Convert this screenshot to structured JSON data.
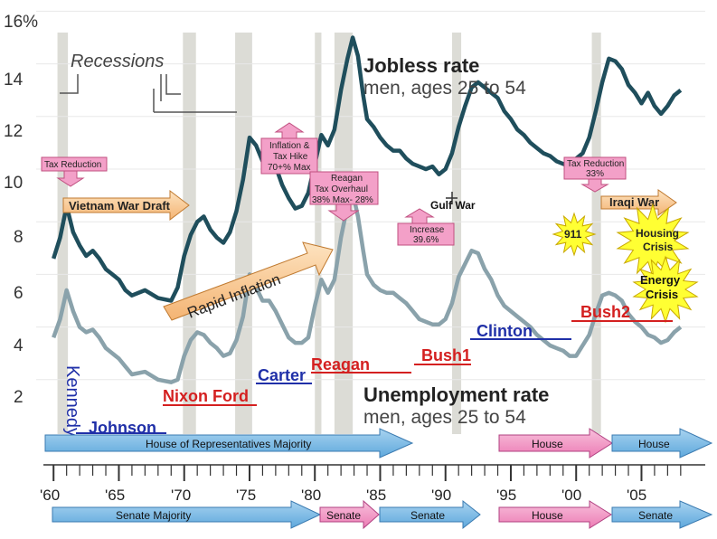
{
  "chart_data": {
    "type": "line",
    "y_axis": {
      "unit_label": "16%",
      "ticks": [
        "14",
        "12",
        "10",
        "8",
        "6",
        "4",
        "2"
      ],
      "range": [
        0,
        16
      ]
    },
    "x_axis": {
      "tick_labels": [
        "'60",
        "'65",
        "'70",
        "'75",
        "'80",
        "'85",
        "'90",
        "'95",
        "'00",
        "'05"
      ],
      "range": [
        1959.5,
        2008.5
      ]
    },
    "recessions_label": "Recessions",
    "recessions": [
      [
        1960.3,
        1961.1
      ],
      [
        1969.9,
        1970.9
      ],
      [
        1973.9,
        1975.2
      ],
      [
        1980.0,
        1980.5
      ],
      [
        1981.5,
        1982.9
      ],
      [
        1990.5,
        1991.2
      ],
      [
        2001.2,
        2001.9
      ]
    ],
    "series": [
      {
        "name": "jobless",
        "title": "Jobless rate",
        "subtitle": "men, ages 25 to 54",
        "color": "#1f4e5c",
        "points": [
          [
            1960,
            6.6
          ],
          [
            1960.5,
            7.4
          ],
          [
            1961,
            8.6
          ],
          [
            1961.5,
            7.6
          ],
          [
            1962,
            7.1
          ],
          [
            1962.5,
            6.7
          ],
          [
            1963,
            6.9
          ],
          [
            1963.5,
            6.6
          ],
          [
            1964,
            6.2
          ],
          [
            1964.5,
            6.0
          ],
          [
            1965,
            5.8
          ],
          [
            1965.5,
            5.4
          ],
          [
            1966,
            5.2
          ],
          [
            1967,
            5.4
          ],
          [
            1968,
            5.1
          ],
          [
            1969,
            5.0
          ],
          [
            1969.5,
            5.5
          ],
          [
            1970,
            6.7
          ],
          [
            1970.5,
            7.5
          ],
          [
            1971,
            8.0
          ],
          [
            1971.5,
            8.2
          ],
          [
            1972,
            7.7
          ],
          [
            1972.5,
            7.4
          ],
          [
            1973,
            7.2
          ],
          [
            1973.5,
            7.6
          ],
          [
            1974,
            8.4
          ],
          [
            1974.5,
            9.6
          ],
          [
            1975,
            11.2
          ],
          [
            1975.5,
            10.9
          ],
          [
            1976,
            10.3
          ],
          [
            1976.5,
            10.8
          ],
          [
            1977,
            10.1
          ],
          [
            1977.5,
            9.4
          ],
          [
            1978,
            8.9
          ],
          [
            1978.5,
            8.5
          ],
          [
            1979,
            8.6
          ],
          [
            1979.5,
            9.1
          ],
          [
            1980,
            10.2
          ],
          [
            1980.5,
            11.3
          ],
          [
            1981,
            10.9
          ],
          [
            1981.5,
            11.5
          ],
          [
            1982,
            13.0
          ],
          [
            1982.5,
            14.2
          ],
          [
            1982.9,
            15.0
          ],
          [
            1983.3,
            14.3
          ],
          [
            1983.7,
            12.8
          ],
          [
            1984,
            11.9
          ],
          [
            1984.5,
            11.6
          ],
          [
            1985,
            11.2
          ],
          [
            1985.5,
            10.9
          ],
          [
            1986,
            10.7
          ],
          [
            1986.5,
            10.7
          ],
          [
            1987,
            10.4
          ],
          [
            1987.5,
            10.2
          ],
          [
            1988,
            10.1
          ],
          [
            1988.5,
            10.0
          ],
          [
            1989,
            10.1
          ],
          [
            1989.5,
            9.8
          ],
          [
            1990,
            10.0
          ],
          [
            1990.5,
            10.6
          ],
          [
            1991,
            11.6
          ],
          [
            1991.5,
            12.4
          ],
          [
            1992,
            13.1
          ],
          [
            1992.5,
            13.3
          ],
          [
            1993,
            13.1
          ],
          [
            1993.5,
            12.9
          ],
          [
            1994,
            12.7
          ],
          [
            1994.5,
            12.2
          ],
          [
            1995,
            11.9
          ],
          [
            1995.5,
            11.5
          ],
          [
            1996,
            11.3
          ],
          [
            1996.5,
            11.0
          ],
          [
            1997,
            10.8
          ],
          [
            1997.5,
            10.6
          ],
          [
            1998,
            10.5
          ],
          [
            1998.5,
            10.3
          ],
          [
            1999,
            10.2
          ],
          [
            1999.5,
            10.1
          ],
          [
            2000,
            10.4
          ],
          [
            2000.5,
            10.6
          ],
          [
            2001,
            11.2
          ],
          [
            2001.5,
            12.2
          ],
          [
            2002,
            13.3
          ],
          [
            2002.5,
            14.2
          ],
          [
            2003,
            14.1
          ],
          [
            2003.5,
            13.8
          ],
          [
            2004,
            13.2
          ],
          [
            2004.5,
            12.9
          ],
          [
            2005,
            12.5
          ],
          [
            2005.5,
            12.9
          ],
          [
            2006,
            12.4
          ],
          [
            2006.5,
            12.1
          ],
          [
            2007,
            12.4
          ],
          [
            2007.5,
            12.8
          ],
          [
            2008,
            13.0
          ]
        ]
      },
      {
        "name": "unemployment",
        "title": "Unemployment rate",
        "subtitle": "men, ages 25 to 54",
        "color": "#8aa2ab",
        "points": [
          [
            1960,
            3.6
          ],
          [
            1960.5,
            4.3
          ],
          [
            1961,
            5.4
          ],
          [
            1961.5,
            4.6
          ],
          [
            1962,
            4.0
          ],
          [
            1962.5,
            3.8
          ],
          [
            1963,
            3.9
          ],
          [
            1963.5,
            3.6
          ],
          [
            1964,
            3.2
          ],
          [
            1964.5,
            3.0
          ],
          [
            1965,
            2.8
          ],
          [
            1965.5,
            2.5
          ],
          [
            1966,
            2.2
          ],
          [
            1967,
            2.3
          ],
          [
            1968,
            2.0
          ],
          [
            1969,
            1.9
          ],
          [
            1969.5,
            2.0
          ],
          [
            1970,
            2.9
          ],
          [
            1970.5,
            3.5
          ],
          [
            1971,
            3.8
          ],
          [
            1971.5,
            3.7
          ],
          [
            1972,
            3.4
          ],
          [
            1972.5,
            3.2
          ],
          [
            1973,
            2.9
          ],
          [
            1973.5,
            3.0
          ],
          [
            1974,
            3.5
          ],
          [
            1974.5,
            4.4
          ],
          [
            1975,
            6.0
          ],
          [
            1975.5,
            5.5
          ],
          [
            1976,
            5.0
          ],
          [
            1976.5,
            5.0
          ],
          [
            1977,
            4.6
          ],
          [
            1977.5,
            4.1
          ],
          [
            1978,
            3.6
          ],
          [
            1978.5,
            3.4
          ],
          [
            1979,
            3.4
          ],
          [
            1979.5,
            3.6
          ],
          [
            1980,
            4.8
          ],
          [
            1980.5,
            5.8
          ],
          [
            1981,
            5.3
          ],
          [
            1981.5,
            5.8
          ],
          [
            1982,
            7.4
          ],
          [
            1982.5,
            8.6
          ],
          [
            1982.9,
            9.1
          ],
          [
            1983.3,
            8.2
          ],
          [
            1983.7,
            6.9
          ],
          [
            1984,
            6.0
          ],
          [
            1984.5,
            5.6
          ],
          [
            1985,
            5.4
          ],
          [
            1985.5,
            5.3
          ],
          [
            1986,
            5.3
          ],
          [
            1986.5,
            5.1
          ],
          [
            1987,
            4.9
          ],
          [
            1987.5,
            4.6
          ],
          [
            1988,
            4.3
          ],
          [
            1988.5,
            4.2
          ],
          [
            1989,
            4.1
          ],
          [
            1989.5,
            4.1
          ],
          [
            1990,
            4.3
          ],
          [
            1990.5,
            4.9
          ],
          [
            1991,
            5.9
          ],
          [
            1991.5,
            6.4
          ],
          [
            1992,
            6.9
          ],
          [
            1992.5,
            6.8
          ],
          [
            1993,
            6.2
          ],
          [
            1993.5,
            5.8
          ],
          [
            1994,
            5.2
          ],
          [
            1994.5,
            4.8
          ],
          [
            1995,
            4.6
          ],
          [
            1995.5,
            4.4
          ],
          [
            1996,
            4.2
          ],
          [
            1996.5,
            4.0
          ],
          [
            1997,
            3.7
          ],
          [
            1997.5,
            3.5
          ],
          [
            1998,
            3.3
          ],
          [
            1998.5,
            3.2
          ],
          [
            1999,
            3.1
          ],
          [
            1999.5,
            2.9
          ],
          [
            2000,
            2.9
          ],
          [
            2000.5,
            3.3
          ],
          [
            2001,
            3.7
          ],
          [
            2001.5,
            4.5
          ],
          [
            2002,
            5.2
          ],
          [
            2002.5,
            5.3
          ],
          [
            2003,
            5.2
          ],
          [
            2003.5,
            5.0
          ],
          [
            2004,
            4.5
          ],
          [
            2004.5,
            4.2
          ],
          [
            2005,
            4.0
          ],
          [
            2005.5,
            3.7
          ],
          [
            2006,
            3.6
          ],
          [
            2006.5,
            3.4
          ],
          [
            2007,
            3.5
          ],
          [
            2007.5,
            3.8
          ],
          [
            2008,
            4.0
          ]
        ]
      }
    ],
    "annotations": {
      "tax_reduction_1": "Tax Reduction",
      "vietnam": "Vietnam War  Draft",
      "inflation_tax": [
        "Inflation &",
        "Tax Hike",
        "70+% Max"
      ],
      "reagan_tax": [
        "Reagan",
        "Tax Overhaul",
        "38% Max- 28%"
      ],
      "rapid_inflation": "Rapid Inflation",
      "gulf_war": "Gulf War",
      "increase": [
        "Increase",
        "39.6%"
      ],
      "tax_reduction_2": [
        "Tax Reduction",
        "33%"
      ],
      "iraqi_war": "Iraqi War",
      "nine11": "911",
      "housing": [
        "Housing",
        "Crisis"
      ],
      "energy": [
        "Energy",
        "Crisis"
      ]
    },
    "presidents": [
      {
        "name": "Kennedy",
        "color": "#2030a8"
      },
      {
        "name": "Johnson",
        "color": "#2030a8"
      },
      {
        "name": "Nixon Ford",
        "color": "#d42020"
      },
      {
        "name": "Carter",
        "color": "#2030a8"
      },
      {
        "name": "Reagan",
        "color": "#d42020"
      },
      {
        "name": "Bush1",
        "color": "#d42020"
      },
      {
        "name": "Clinton",
        "color": "#2030a8"
      },
      {
        "name": "Bush2",
        "color": "#d42020"
      }
    ],
    "house": [
      {
        "label": "House of Representatives Majority",
        "color": "#6fb3e0"
      },
      {
        "label": "House",
        "color": "#f08cc0"
      },
      {
        "label": "House",
        "color": "#6fb3e0"
      }
    ],
    "senate": [
      {
        "label": "Senate Majority",
        "color": "#6fb3e0"
      },
      {
        "label": "Senate",
        "color": "#f08cc0"
      },
      {
        "label": "Senate",
        "color": "#6fb3e0"
      },
      {
        "label": "House",
        "color": "#f08cc0"
      },
      {
        "label": "Senate",
        "color": "#6fb3e0"
      }
    ]
  }
}
